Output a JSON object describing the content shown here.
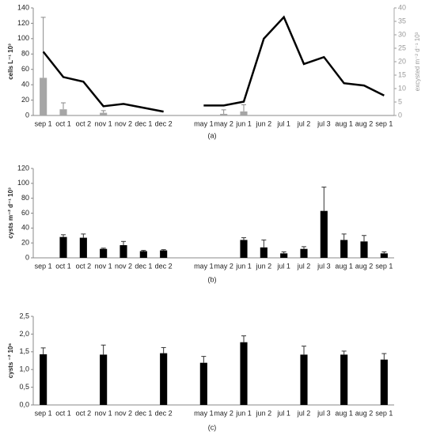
{
  "chart_data": [
    {
      "type": "combo",
      "label": "(a)",
      "ylabel": "cells L⁻¹ 10³",
      "y2label": "excysted m⁻² d⁻¹ 10³",
      "categories": [
        "sep 1",
        "oct 1",
        "oct 2",
        "nov 1",
        "nov 2",
        "dec 1",
        "dec 2",
        null,
        "may 1",
        "may 2",
        "jun 1",
        "jun 2",
        "jul 1",
        "jul 2",
        "jul 3",
        "aug 1",
        "aug 2",
        "sep 1"
      ],
      "ylim": [
        0,
        140
      ],
      "yticks": [
        0,
        20,
        40,
        60,
        80,
        100,
        120,
        140
      ],
      "y2lim": [
        0,
        40
      ],
      "y2ticks": [
        0,
        5,
        10,
        15,
        20,
        25,
        30,
        35,
        40
      ],
      "series": [
        {
          "type": "bar",
          "axis": "y2",
          "color": "#a6a6a6",
          "values": [
            14,
            2.3,
            null,
            1,
            null,
            null,
            null,
            null,
            null,
            0.6,
            1.5,
            null,
            null,
            null,
            null,
            null,
            null,
            null
          ],
          "errors": [
            22.5,
            2.4,
            null,
            0.8,
            null,
            null,
            null,
            null,
            null,
            1.5,
            2.5,
            null,
            null,
            null,
            null,
            null,
            null,
            null
          ]
        },
        {
          "type": "line",
          "color": "#000000",
          "values": [
            83,
            50,
            44,
            12,
            15,
            10,
            5,
            null,
            13,
            13,
            18,
            100,
            128,
            67,
            76,
            42,
            39,
            26
          ]
        }
      ]
    },
    {
      "type": "bar",
      "label": "(b)",
      "ylabel": "cysts m⁻² d⁻¹ 10³",
      "categories": [
        "sep 1",
        "oct 1",
        "oct 2",
        "nov 1",
        "nov 2",
        "dec 1",
        "dec 2",
        null,
        "may 1",
        "may 2",
        "jun 1",
        "jun 2",
        "jul 1",
        "jul 2",
        "jul 3",
        "aug 1",
        "aug 2",
        "sep 1"
      ],
      "ylim": [
        0,
        120
      ],
      "yticks": [
        0,
        20,
        40,
        60,
        80,
        100,
        120
      ],
      "series": [
        {
          "type": "bar",
          "color": "#000000",
          "values": [
            null,
            28,
            27,
            12,
            17,
            9,
            10,
            null,
            null,
            null,
            24,
            14,
            6,
            12,
            63,
            24,
            22,
            6
          ],
          "errors": [
            null,
            3,
            5,
            1,
            5,
            1,
            1,
            null,
            null,
            null,
            3,
            10,
            2,
            3,
            32,
            8,
            8,
            2
          ]
        }
      ]
    },
    {
      "type": "bar",
      "label": "(c)",
      "ylabel": "cysts ⁻² 10⁶",
      "categories": [
        "sep 1",
        "oct 1",
        "oct 2",
        "nov 1",
        "nov 2",
        "dec 1",
        "dec 2",
        null,
        "may 1",
        "may 2",
        "jun 1",
        "jun 2",
        "jul 1",
        "jul 2",
        "jul 3",
        "aug 1",
        "aug 2",
        "sep 1"
      ],
      "ylim": [
        0,
        2.5
      ],
      "yticks": [
        {
          "value": 0,
          "label": "0,0"
        },
        {
          "value": 0.5,
          "label": "0,5"
        },
        {
          "value": 1,
          "label": "1,0"
        },
        {
          "value": 1.5,
          "label": "1,5"
        },
        {
          "value": 2,
          "label": "2,0"
        },
        {
          "value": 2.5,
          "label": "2,5"
        }
      ],
      "series": [
        {
          "type": "bar",
          "color": "#000000",
          "values": [
            1.43,
            null,
            null,
            1.42,
            null,
            null,
            1.46,
            null,
            1.19,
            null,
            1.77,
            null,
            null,
            1.42,
            null,
            1.42,
            null,
            1.28
          ],
          "errors": [
            0.18,
            null,
            null,
            0.27,
            null,
            null,
            0.16,
            null,
            0.18,
            null,
            0.18,
            null,
            null,
            0.24,
            null,
            0.1,
            null,
            0.17
          ]
        }
      ]
    }
  ]
}
